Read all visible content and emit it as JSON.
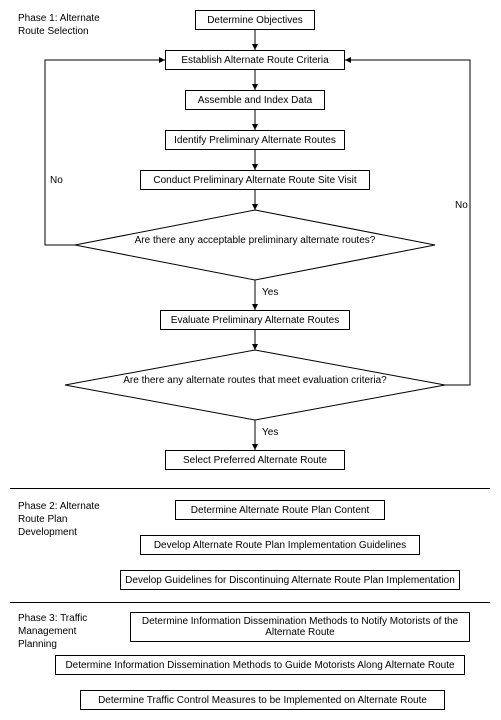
{
  "phase_labels": {
    "p1": "Phase 1: Alternate\nRoute Selection",
    "p2": "Phase 2: Alternate\nRoute Plan\nDevelopment",
    "p3": "Phase 3: Traffic\nManagement\nPlanning"
  },
  "boxes": {
    "b1": "Determine Objectives",
    "b2": "Establish Alternate Route Criteria",
    "b3": "Assemble and Index Data",
    "b4": "Identify Preliminary Alternate Routes",
    "b5": "Conduct Preliminary Alternate Route Site Visit",
    "b6": "Evaluate Preliminary Alternate Routes",
    "b7": "Select Preferred Alternate Route",
    "p2b1": "Determine Alternate Route Plan Content",
    "p2b2": "Develop Alternate Route Plan Implementation Guidelines",
    "p2b3": "Develop Guidelines for Discontinuing Alternate Route Plan Implementation",
    "p3b1": "Determine Information Dissemination Methods to Notify Motorists of the Alternate Route",
    "p3b2": "Determine Information Dissemination Methods to Guide Motorists Along Alternate Route",
    "p3b3": "Determine Traffic Control Measures to be Implemented on Alternate Route"
  },
  "decisions": {
    "d1": "Are there any acceptable preliminary alternate routes?",
    "d2": "Are there any alternate routes that meet evaluation criteria?"
  },
  "edge_labels": {
    "yes1": "Yes",
    "yes2": "Yes",
    "no1": "No",
    "no2": "No"
  },
  "colors": {
    "line": "#000000",
    "bg": "#ffffff"
  }
}
